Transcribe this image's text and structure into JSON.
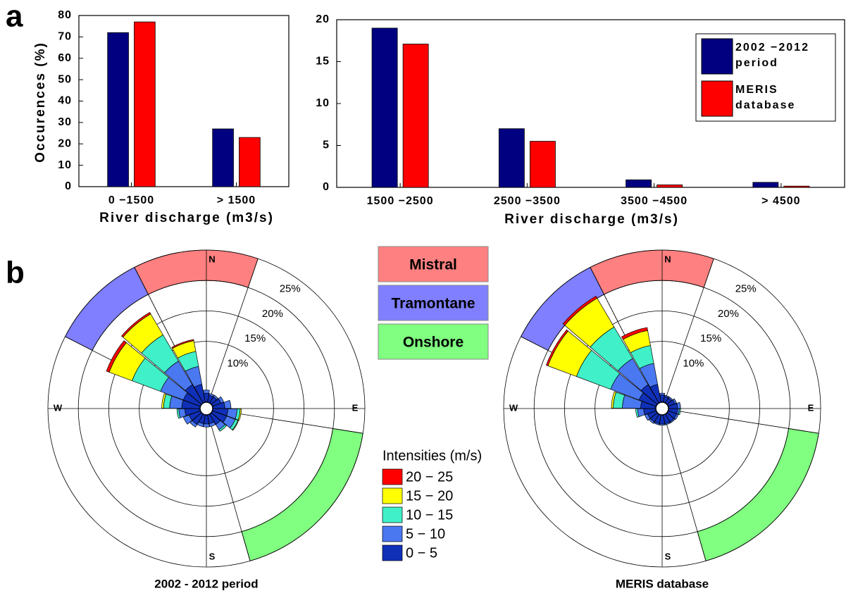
{
  "panel_labels": [
    "a",
    "b"
  ],
  "wind_sectors": {
    "items": [
      {
        "name": "Mistral",
        "color": "#ff8080",
        "from": 333,
        "to": 19
      },
      {
        "name": "Tramontane",
        "color": "#7f7fff",
        "from": 297,
        "to": 333
      },
      {
        "name": "Onshore",
        "color": "#80ff80",
        "from": 99,
        "to": 164
      }
    ]
  },
  "intensity_legend": {
    "title": "Intensities (m/s)"
  },
  "chart_data": [
    {
      "type": "bar",
      "ylabel": "Occurences (%)",
      "xlabel": "River discharge (m3/s)",
      "categories": [
        "0 −1500",
        "> 1500"
      ],
      "series": [
        {
          "name": "2002 −2012 period",
          "color": "#000080",
          "values": [
            72,
            27
          ]
        },
        {
          "name": "MERIS database",
          "color": "#ff0000",
          "values": [
            77,
            23
          ]
        }
      ],
      "ylim": [
        0,
        80
      ],
      "yticks": [
        0,
        10,
        20,
        30,
        40,
        50,
        60,
        70,
        80
      ],
      "legend": false
    },
    {
      "type": "bar",
      "xlabel": "River discharge (m3/s)",
      "categories": [
        "1500 −2500",
        "2500 −3500",
        "3500 −4500",
        "> 4500"
      ],
      "series": [
        {
          "name": "2002 −2012 period",
          "color": "#000080",
          "values": [
            19,
            7,
            0.9,
            0.6
          ]
        },
        {
          "name": "MERIS database",
          "color": "#ff0000",
          "values": [
            17.1,
            5.5,
            0.3,
            0.15
          ]
        }
      ],
      "ylim": [
        0,
        20
      ],
      "yticks": [
        0,
        5,
        10,
        15,
        20
      ],
      "legend": "upper right"
    },
    {
      "type": "windrose",
      "title": "2002 - 2012 period",
      "direction_labels": [
        "N",
        "E",
        "S",
        "W"
      ],
      "directions": [
        0,
        20,
        40,
        60,
        80,
        100,
        120,
        140,
        160,
        180,
        200,
        220,
        240,
        260,
        280,
        300,
        320,
        340
      ],
      "rlim": [
        0,
        25
      ],
      "rticks": [
        {
          "value": 10,
          "label": "10%"
        },
        {
          "value": 15,
          "label": "15%"
        },
        {
          "value": 20,
          "label": "20%"
        },
        {
          "value": 25,
          "label": "25%"
        }
      ],
      "series": [
        {
          "name": "0 − 5",
          "color": "#1030b8",
          "values": [
            1.5,
            1.2,
            1.2,
            1.5,
            2,
            2.5,
            2.5,
            2,
            1.5,
            1.5,
            1.5,
            2,
            2,
            2.5,
            3,
            3,
            3.5,
            3
          ]
        },
        {
          "name": "5 − 10",
          "color": "#4a78f0",
          "values": [
            0.5,
            0.3,
            0.3,
            0.5,
            1,
            1.5,
            1.5,
            1,
            0.5,
            0.5,
            0.5,
            0.5,
            1,
            1,
            2,
            4,
            4.5,
            3
          ]
        },
        {
          "name": "10 − 15",
          "color": "#40f0c8",
          "values": [
            0,
            0,
            0,
            0,
            0,
            0.5,
            0.5,
            0.3,
            0,
            0,
            0,
            0,
            0,
            0.3,
            1,
            5,
            5,
            2.5
          ]
        },
        {
          "name": "15 − 20",
          "color": "#ffff00",
          "values": [
            0,
            0,
            0,
            0,
            0,
            0.2,
            0.1,
            0,
            0,
            0,
            0,
            0,
            0,
            0,
            0.3,
            4,
            4,
            1.8
          ]
        },
        {
          "name": "20 − 25",
          "color": "#ff0000",
          "values": [
            0,
            0,
            0,
            0,
            0,
            0,
            0,
            0,
            0,
            0,
            0,
            0,
            0,
            0,
            0,
            0.5,
            0.3,
            0.2
          ]
        }
      ]
    },
    {
      "type": "windrose",
      "title": "MERIS database",
      "direction_labels": [
        "N",
        "E",
        "S",
        "W"
      ],
      "directions": [
        0,
        20,
        40,
        60,
        80,
        100,
        120,
        140,
        160,
        180,
        200,
        220,
        240,
        260,
        280,
        300,
        320,
        340
      ],
      "rlim": [
        0,
        25
      ],
      "rticks": [
        {
          "value": 10,
          "label": "10%"
        },
        {
          "value": 15,
          "label": "15%"
        },
        {
          "value": 20,
          "label": "20%"
        },
        {
          "value": 25,
          "label": "25%"
        }
      ],
      "series": [
        {
          "name": "0 − 5",
          "color": "#1030b8",
          "values": [
            1.2,
            1,
            1,
            1.2,
            1.5,
            1.5,
            1.5,
            1.5,
            1.5,
            1.5,
            1.5,
            1.5,
            1.5,
            2,
            2.5,
            3,
            3.5,
            3
          ]
        },
        {
          "name": "5 − 10",
          "color": "#4a78f0",
          "values": [
            0.3,
            0.2,
            0.2,
            0.3,
            0.5,
            0.3,
            0.3,
            0.2,
            0.2,
            0.2,
            0.2,
            0.3,
            0.5,
            1,
            3,
            5,
            5,
            3.5
          ]
        },
        {
          "name": "10 − 15",
          "color": "#40f0c8",
          "values": [
            0,
            0,
            0,
            0,
            0,
            0.2,
            0,
            0,
            0,
            0,
            0,
            0,
            0,
            0.3,
            1.5,
            6,
            6,
            3
          ]
        },
        {
          "name": "15 − 20",
          "color": "#ffff00",
          "values": [
            0,
            0,
            0,
            0,
            0,
            0,
            0,
            0,
            0,
            0,
            0,
            0,
            0,
            0,
            0.3,
            5,
            5.5,
            2.5
          ]
        },
        {
          "name": "20 − 25",
          "color": "#ff0000",
          "values": [
            0,
            0,
            0,
            0,
            0,
            0,
            0,
            0,
            0,
            0,
            0,
            0,
            0,
            0,
            0,
            0.3,
            0.4,
            0.5
          ]
        }
      ]
    }
  ]
}
